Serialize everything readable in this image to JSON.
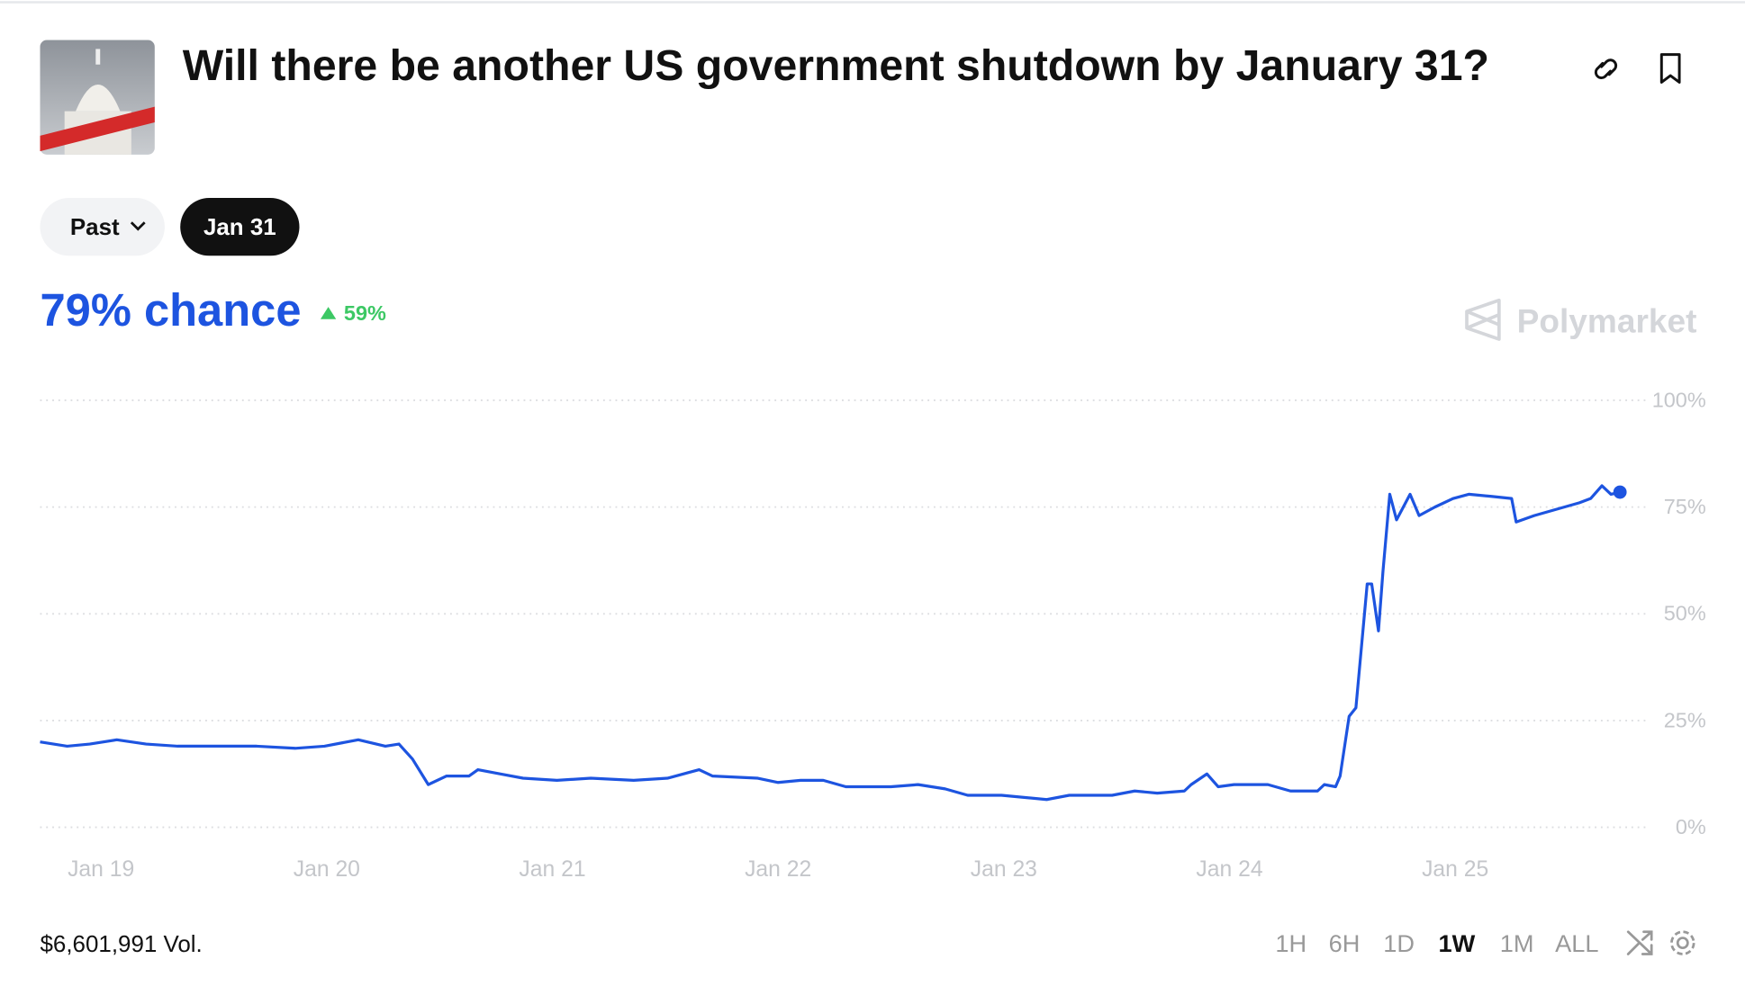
{
  "title": "Will there be another US government shutdown by January 31?",
  "pills": [
    "Past",
    "Jan 31"
  ],
  "headline": "79% chance",
  "change": "59%",
  "brand": "Polymarket",
  "volume": "$6,601,991 Vol.",
  "ranges": [
    "1H",
    "6H",
    "1D",
    "1W",
    "1M",
    "ALL"
  ],
  "active_range": "1W",
  "chart_data": {
    "type": "line",
    "x": [
      18.73,
      18.85,
      18.95,
      19.07,
      19.2,
      19.34,
      19.54,
      19.69,
      19.86,
      19.99,
      20.14,
      20.26,
      20.32,
      20.38,
      20.45,
      20.53,
      20.63,
      20.67,
      20.77,
      20.87,
      21.02,
      21.17,
      21.36,
      21.51,
      21.65,
      21.71,
      21.91,
      22.0,
      22.1,
      22.2,
      22.3,
      22.5,
      22.62,
      22.74,
      22.84,
      22.99,
      23.19,
      23.29,
      23.48,
      23.58,
      23.68,
      23.8,
      23.83,
      23.9,
      23.95,
      24.02,
      24.17,
      24.27,
      24.39,
      24.42,
      24.47,
      24.49,
      24.53,
      24.56,
      24.61,
      24.63,
      24.66,
      24.68,
      24.71,
      24.74,
      24.77,
      24.8,
      24.84,
      24.91,
      24.99,
      25.06,
      25.16,
      25.25,
      25.27,
      25.35,
      25.45,
      25.55,
      25.6,
      25.65,
      25.69,
      25.73
    ],
    "series": [
      {
        "color": "#1d54e0",
        "values": [
          20,
          19,
          19.5,
          20.5,
          19.5,
          19,
          19,
          19,
          18.5,
          19,
          20.5,
          19,
          19.5,
          16,
          10,
          12,
          12,
          13.5,
          12.5,
          11.5,
          11,
          11.5,
          11,
          11.5,
          13.5,
          12,
          11.5,
          10.5,
          11,
          11,
          9.5,
          9.5,
          10,
          9,
          7.5,
          7.5,
          6.5,
          7.5,
          7.5,
          8.5,
          8,
          8.5,
          10,
          12.5,
          9.5,
          10,
          10,
          8.5,
          8.5,
          10,
          9.5,
          12,
          26,
          28,
          57,
          57,
          46,
          60,
          78,
          72,
          75,
          78,
          73,
          75,
          77,
          78,
          77.5,
          77,
          71.5,
          73,
          74.5,
          76,
          77,
          80,
          78,
          78.5
        ]
      }
    ],
    "xlim": [
      18.73,
      25.85
    ],
    "xticks": [
      {
        "value": 19,
        "label": "Jan 19"
      },
      {
        "value": 20,
        "label": "Jan 20"
      },
      {
        "value": 21,
        "label": "Jan 21"
      },
      {
        "value": 22,
        "label": "Jan 22"
      },
      {
        "value": 23,
        "label": "Jan 23"
      },
      {
        "value": 24,
        "label": "Jan 24"
      },
      {
        "value": 25,
        "label": "Jan 25"
      }
    ],
    "ylim": [
      0,
      100
    ],
    "yticks": [
      {
        "value": 0,
        "label": "0%"
      },
      {
        "value": 25,
        "label": "25%"
      },
      {
        "value": 50,
        "label": "50%"
      },
      {
        "value": 75,
        "label": "75%"
      },
      {
        "value": 100,
        "label": "100%"
      }
    ],
    "grid": true
  }
}
